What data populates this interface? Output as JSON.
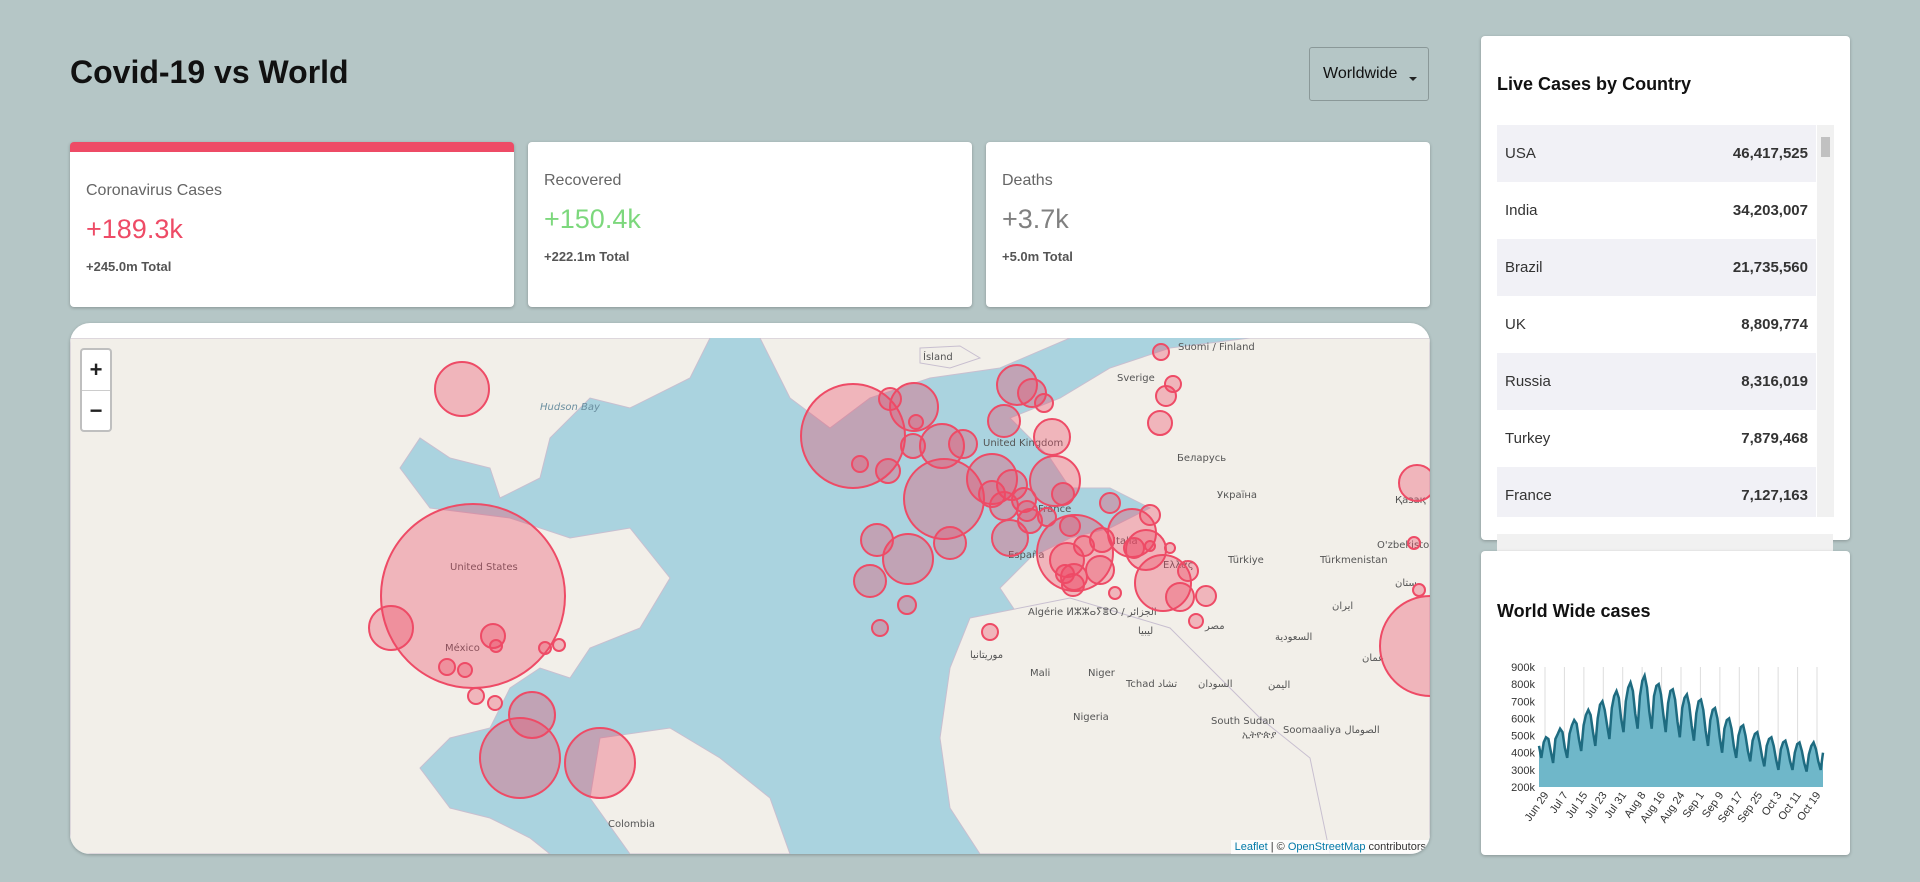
{
  "header": {
    "title": "Covid-19 vs World",
    "dropdown_value": "Worldwide"
  },
  "stats": [
    {
      "label": "Coronavirus Cases",
      "value": "+189.3k",
      "total": "+245.0m Total",
      "color": "#ee4b66",
      "active": true
    },
    {
      "label": "Recovered",
      "value": "+150.4k",
      "total": "+222.1m Total",
      "color": "#7dd87d",
      "active": false
    },
    {
      "label": "Deaths",
      "value": "+3.7k",
      "total": "+5.0m Total",
      "color": "#808080",
      "active": false
    }
  ],
  "map": {
    "zoom_in": "+",
    "zoom_out": "−",
    "attribution_leaflet": "Leaflet",
    "attribution_sep": " | © ",
    "attribution_osm": "OpenStreetMap",
    "attribution_tail": " contributors",
    "circle_color": "#ee4b66",
    "labels": [
      "United States",
      "México",
      "Hudson Bay",
      "Ísland",
      "Sverige",
      "Suomi / Finland",
      "United Kingdom",
      "France",
      "España",
      "Italia",
      "Ελλάς",
      "Türkiye",
      "Беларусь",
      "Україна",
      "Algérie ⵍⵣⵣⴰⵢⴻⵔ / الجزائر",
      "Mali",
      "Niger",
      "Tchad تشاد",
      "ليبيا",
      "مصر",
      "السودان",
      "South Sudan",
      "Nigeria",
      "Colombia",
      "ኢትዮጵያ",
      "Soomaaliya الصومال",
      "Türkmenistan",
      "O'zbekiston",
      "السعودية",
      "اليمن",
      "ایران",
      "عمان",
      "Қазақ",
      "موريتانيا",
      "ستان"
    ]
  },
  "live_cases": {
    "title": "Live Cases by Country",
    "rows": [
      {
        "country": "USA",
        "cases": "46,417,525"
      },
      {
        "country": "India",
        "cases": "34,203,007"
      },
      {
        "country": "Brazil",
        "cases": "21,735,560"
      },
      {
        "country": "UK",
        "cases": "8,809,774"
      },
      {
        "country": "Russia",
        "cases": "8,316,019"
      },
      {
        "country": "Turkey",
        "cases": "7,879,468"
      },
      {
        "country": "France",
        "cases": "7,127,163"
      }
    ]
  },
  "chart_data": {
    "type": "area",
    "title": "World Wide cases",
    "ylim": [
      200000,
      900000
    ],
    "yticks": [
      "900k",
      "800k",
      "700k",
      "600k",
      "500k",
      "400k",
      "300k",
      "200k"
    ],
    "xticks": [
      "Jun 29",
      "Jul 7",
      "Jul 15",
      "Jul 23",
      "Jul 31",
      "Aug 8",
      "Aug 16",
      "Aug 24",
      "Sep 1",
      "Sep 9",
      "Sep 17",
      "Sep 25",
      "Oct 3",
      "Oct 11",
      "Oct 19"
    ],
    "color": "#1e6b80",
    "fill": "#6fb7c9",
    "values": [
      440000,
      370000,
      460000,
      490000,
      480000,
      410000,
      340000,
      480000,
      510000,
      540000,
      520000,
      430000,
      370000,
      510000,
      560000,
      590000,
      570000,
      480000,
      410000,
      560000,
      620000,
      650000,
      620000,
      520000,
      440000,
      600000,
      680000,
      700000,
      650000,
      560000,
      480000,
      660000,
      730000,
      760000,
      720000,
      600000,
      520000,
      700000,
      780000,
      810000,
      760000,
      630000,
      540000,
      730000,
      820000,
      850000,
      780000,
      640000,
      540000,
      730000,
      790000,
      800000,
      740000,
      620000,
      520000,
      690000,
      760000,
      770000,
      710000,
      580000,
      490000,
      660000,
      720000,
      740000,
      680000,
      560000,
      470000,
      630000,
      700000,
      710000,
      650000,
      530000,
      440000,
      590000,
      650000,
      660000,
      600000,
      490000,
      400000,
      540000,
      590000,
      600000,
      540000,
      440000,
      370000,
      500000,
      550000,
      560000,
      500000,
      410000,
      350000,
      470000,
      510000,
      520000,
      460000,
      380000,
      320000,
      440000,
      480000,
      490000,
      440000,
      360000,
      300000,
      420000,
      460000,
      470000,
      420000,
      350000,
      300000,
      400000,
      450000,
      460000,
      410000,
      340000,
      290000,
      390000,
      440000,
      460000,
      420000,
      350000,
      300000,
      400000
    ]
  }
}
